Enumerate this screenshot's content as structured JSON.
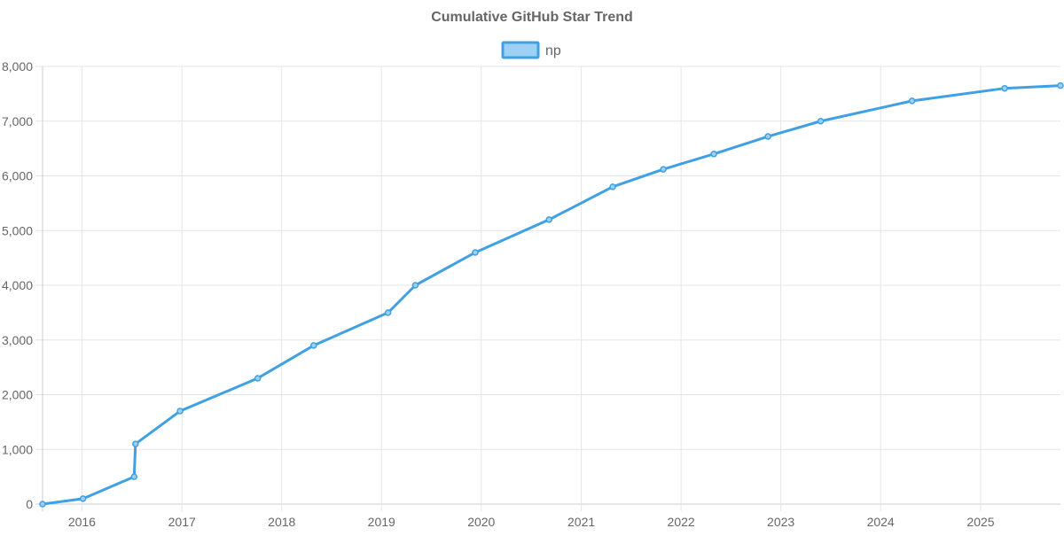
{
  "chart_data": {
    "type": "line",
    "title": "Cumulative GitHub Star Trend",
    "xlabel": "",
    "ylabel": "",
    "x_axis_type": "date",
    "xlim": [
      "2015-08-10",
      "2025-10-20"
    ],
    "ylim": [
      0,
      8000
    ],
    "x_ticks": [
      "2016",
      "2017",
      "2018",
      "2019",
      "2020",
      "2021",
      "2022",
      "2023",
      "2024",
      "2025"
    ],
    "y_ticks": [
      "0",
      "1,000",
      "2,000",
      "3,000",
      "4,000",
      "5,000",
      "6,000",
      "7,000",
      "8,000"
    ],
    "y_tick_values": [
      0,
      1000,
      2000,
      3000,
      4000,
      5000,
      6000,
      7000,
      8000
    ],
    "grid": true,
    "legend_position": "top-center",
    "series": [
      {
        "name": "np",
        "color": "#3fa1e3",
        "fill_color": "#9dd0f3",
        "points": [
          {
            "x": "2015-08-10",
            "y": 0
          },
          {
            "x": "2016-01-05",
            "y": 100
          },
          {
            "x": "2016-07-10",
            "y": 500
          },
          {
            "x": "2016-07-15",
            "y": 1100
          },
          {
            "x": "2016-12-25",
            "y": 1700
          },
          {
            "x": "2017-10-05",
            "y": 2300
          },
          {
            "x": "2018-04-28",
            "y": 2900
          },
          {
            "x": "2019-01-25",
            "y": 3500
          },
          {
            "x": "2019-05-05",
            "y": 4000
          },
          {
            "x": "2019-12-10",
            "y": 4600
          },
          {
            "x": "2020-09-05",
            "y": 5200
          },
          {
            "x": "2021-04-26",
            "y": 5800
          },
          {
            "x": "2021-10-28",
            "y": 6120
          },
          {
            "x": "2022-05-01",
            "y": 6400
          },
          {
            "x": "2022-11-15",
            "y": 6720
          },
          {
            "x": "2023-05-27",
            "y": 7000
          },
          {
            "x": "2024-04-25",
            "y": 7370
          },
          {
            "x": "2025-03-30",
            "y": 7600
          },
          {
            "x": "2025-10-20",
            "y": 7650
          }
        ]
      }
    ]
  }
}
